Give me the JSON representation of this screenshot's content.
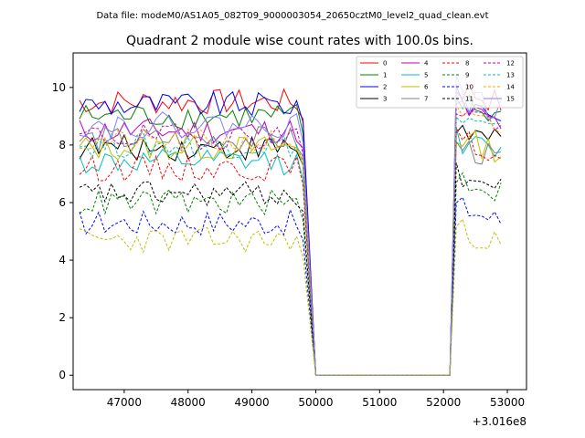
{
  "figure": {
    "suptitle": "Data file: modeM0/AS1A05_082T09_9000003054_20650cztM0_level2_quad_clean.evt",
    "title": "Quadrant 2 module wise count rates with 100.0s bins.",
    "x_offset_label": "+3.016e8"
  },
  "chart_data": {
    "type": "line",
    "title": "Quadrant 2 module wise count rates with 100.0s bins.",
    "xlabel": "",
    "ylabel": "",
    "x_offset": 301600000,
    "xlim": [
      46200,
      53300
    ],
    "ylim": [
      -0.5,
      11.2
    ],
    "xticks": [
      47000,
      48000,
      49000,
      50000,
      51000,
      52000,
      53000
    ],
    "yticks": [
      0,
      2,
      4,
      6,
      8,
      10
    ],
    "grid": false,
    "legend_position": "top-right",
    "segment1": {
      "x_start": 46300,
      "step": 100,
      "count": 36
    },
    "gap": {
      "x_start": 50000,
      "x_end": 52100,
      "value": 0
    },
    "segment2": {
      "x_start": 52200,
      "step": 100,
      "count": 8
    },
    "series": [
      {
        "name": "0",
        "color": "#ff0000",
        "dash": "solid",
        "base1": 9.5,
        "base2": 10.0
      },
      {
        "name": "1",
        "color": "#008000",
        "dash": "solid",
        "base1": 9.0,
        "base2": 9.5
      },
      {
        "name": "2",
        "color": "#0000ff",
        "dash": "solid",
        "base1": 9.4,
        "base2": 9.6
      },
      {
        "name": "3",
        "color": "#000000",
        "dash": "solid",
        "base1": 7.9,
        "base2": 8.6
      },
      {
        "name": "4",
        "color": "#bf00bf",
        "dash": "solid",
        "base1": 8.5,
        "base2": 9.3
      },
      {
        "name": "5",
        "color": "#00bfbf",
        "dash": "solid",
        "base1": 7.4,
        "base2": 8.2
      },
      {
        "name": "6",
        "color": "#bfbf00",
        "dash": "solid",
        "base1": 7.9,
        "base2": 8.3
      },
      {
        "name": "7",
        "color": "#808080",
        "dash": "solid",
        "base1": 8.2,
        "base2": 8.0
      },
      {
        "name": "8",
        "color": "#ff0000",
        "dash": "dashed",
        "base1": 7.2,
        "base2": 8.2
      },
      {
        "name": "9",
        "color": "#008000",
        "dash": "dashed",
        "base1": 6.0,
        "base2": 6.9
      },
      {
        "name": "10",
        "color": "#0000ff",
        "dash": "dashed",
        "base1": 5.3,
        "base2": 5.9
      },
      {
        "name": "11",
        "color": "#000000",
        "dash": "dashed",
        "base1": 6.3,
        "base2": 7.0
      },
      {
        "name": "12",
        "color": "#bf00bf",
        "dash": "dashed",
        "base1": 8.3,
        "base2": 9.3
      },
      {
        "name": "13",
        "color": "#00bfbf",
        "dash": "dashed",
        "base1": 8.0,
        "base2": 8.9
      },
      {
        "name": "14",
        "color": "#ffa500",
        "dash": "dashed",
        "base1": 8.1,
        "base2": 9.0
      },
      {
        "name": "15",
        "color": "#8080ff",
        "dash": "solid",
        "base1": 8.7,
        "base2": 9.7,
        "start2": 10.4
      },
      {
        "name": "",
        "color": "#bfbf00",
        "dash": "dashed",
        "base1": 4.7,
        "base2": 5.1
      }
    ]
  }
}
